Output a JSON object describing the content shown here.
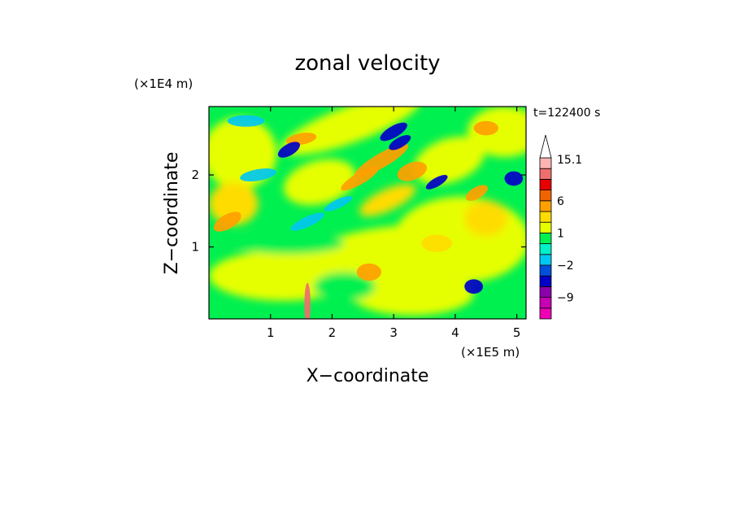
{
  "chart_data": {
    "type": "heatmap",
    "title": "zonal velocity",
    "xlabel": "X−coordinate",
    "ylabel": "Z−coordinate",
    "x_unit": "(×1E5 m)",
    "y_unit": "(×1E4 m)",
    "time_label": "t=122400 s",
    "xlim": [
      0,
      5.15
    ],
    "ylim": [
      0,
      2.95
    ],
    "x_ticks": [
      1,
      2,
      3,
      4,
      5
    ],
    "y_ticks": [
      1,
      2
    ],
    "colorbar": {
      "levels": [
        -15.1,
        -12,
        -9,
        -6,
        -3,
        -2,
        -1,
        0,
        1,
        2,
        3,
        6,
        9,
        12,
        15.1
      ],
      "colors": [
        "#f000b4",
        "#c800b4",
        "#8c00aa",
        "#0000c8",
        "#0050dc",
        "#00c8f0",
        "#00f0c8",
        "#00f050",
        "#e6ff00",
        "#ffdc00",
        "#ffa000",
        "#f06400",
        "#e60000",
        "#f06e6e",
        "#ffb4b4"
      ],
      "labels": [
        {
          "text": "15.1",
          "value": 15.1
        },
        {
          "text": "6",
          "value": 6
        },
        {
          "text": "1",
          "value": 1
        },
        {
          "text": "−2",
          "value": -2
        },
        {
          "text": "−9",
          "value": -9
        }
      ],
      "extend_max": true
    }
  }
}
